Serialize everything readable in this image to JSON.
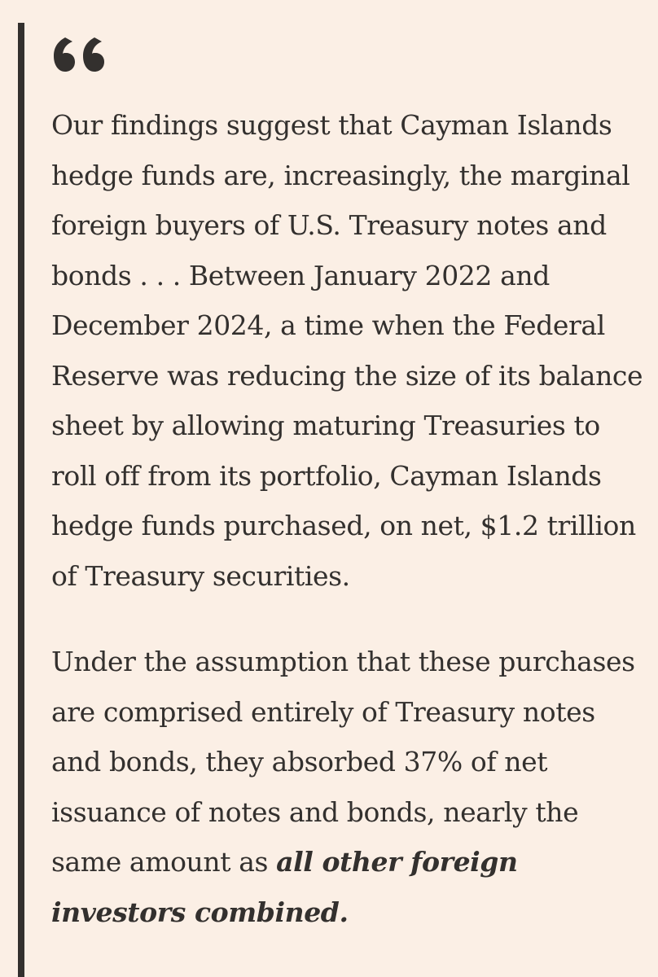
{
  "quote": {
    "icon": "opening-quote-mark-icon",
    "paragraph1_lines": [
      "Our findings suggest that Cayman Islands",
      "hedge funds are, increasingly, the marginal",
      "foreign buyers of U.S. Treasury notes and",
      "bonds . . . Between January 2022 and",
      "December 2024, a time when the Federal",
      "Reserve was reducing the size of its balance",
      "sheet by allowing maturing Treasuries to",
      "roll off from its portfolio, Cayman Islands",
      "hedge funds purchased, on net, $1.2 trillion",
      "of Treasury securities."
    ],
    "paragraph2_lines": [
      "Under the assumption that these purchases",
      "are comprised entirely of Treasury notes",
      "and bonds, they absorbed 37% of net",
      "issuance of notes and bonds, nearly the"
    ],
    "paragraph2_line5_plain": "same amount as ",
    "paragraph2_line5_emphasis": "all other foreign",
    "paragraph2_line6_emphasis": "investors combined.",
    "colors": {
      "background": "#fbefe5",
      "text": "#33302e",
      "rule": "#33302e"
    }
  }
}
